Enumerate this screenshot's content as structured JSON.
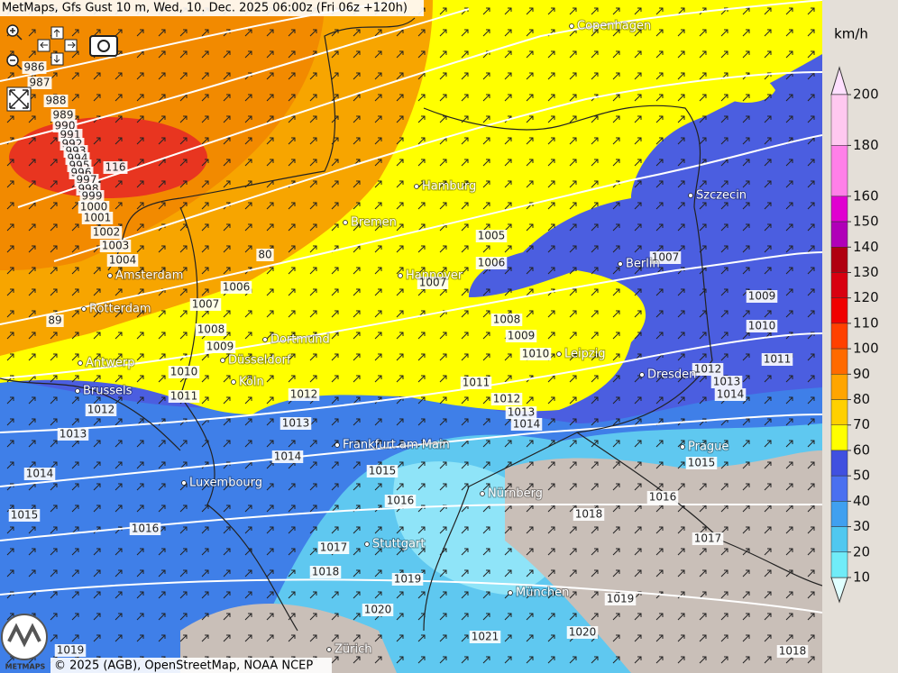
{
  "header": {
    "title": "MetMaps, Gfs Gust 10 m, Wed, 10. Dec. 2025 06:00z (Fri 06z +120h)"
  },
  "cities": [
    "Copenhagen",
    "Hamburg",
    "Szczecin",
    "Bremen",
    "Berlin",
    "Amsterdam",
    "Hannover",
    "Rotterdam",
    "Dortmund",
    "Leipzig",
    "Antwerp",
    "Düsseldorf",
    "Dresden",
    "Köln",
    "Brussels",
    "Frankfurt am Main",
    "Prague",
    "Luxembourg",
    "Nürnberg",
    "Stuttgart",
    "München",
    "Zürich"
  ],
  "isobar_labels": [
    986,
    987,
    988,
    989,
    990,
    991,
    992,
    993,
    994,
    995,
    996,
    997,
    998,
    999,
    1000,
    1001,
    1002,
    1003,
    1004,
    1005,
    1006,
    1007,
    1007,
    1009,
    1010,
    1011,
    1008,
    1009,
    1010,
    1011,
    1012,
    1013,
    1014,
    1012,
    1013,
    1014,
    1006,
    1007,
    1008,
    1009,
    1010,
    1011,
    1012,
    1012,
    1013,
    1013,
    1014,
    1014,
    1015,
    1016,
    1015,
    1016,
    1015,
    1016,
    1018,
    1017,
    1017,
    1018,
    1019,
    1019,
    1020,
    1021,
    1020,
    1019,
    1018
  ],
  "gust_labels": [
    116,
    80,
    89
  ],
  "legend": {
    "unit": "km/h",
    "ticks": [
      200,
      180,
      160,
      150,
      140,
      130,
      120,
      110,
      100,
      90,
      80,
      70,
      60,
      50,
      40,
      30,
      20,
      10
    ]
  },
  "logo": "METMAPS",
  "footer": {
    "copyright": "© 2025 (AGB), OpenStreetMap, NOAA NCEP"
  }
}
